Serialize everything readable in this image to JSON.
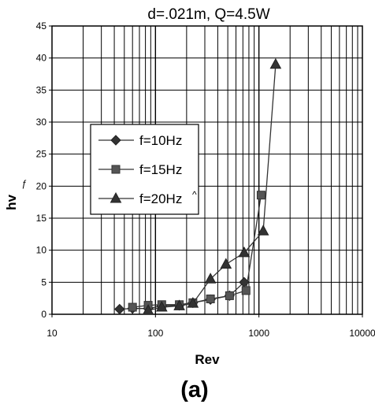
{
  "chart_data": {
    "type": "line",
    "title": "d=.021m, Q=4.5W",
    "xlabel": "Rev",
    "ylabel": "hv",
    "ylabel_mark": "ƒ",
    "panel_label": "(a)",
    "x_scale": "log",
    "xlim": [
      10,
      10000
    ],
    "ylim": [
      0,
      45
    ],
    "x_ticks": [
      10,
      100,
      1000,
      10000
    ],
    "y_ticks": [
      0,
      5,
      10,
      15,
      20,
      25,
      30,
      35,
      40,
      45
    ],
    "grid": true,
    "legend_position": "left-middle",
    "legend_suffix": "^",
    "series": [
      {
        "name": "f=10Hz",
        "marker": "diamond",
        "x": [
          45,
          60,
          85,
          115,
          170,
          230,
          340,
          520,
          720
        ],
        "y": [
          0.8,
          0.9,
          0.9,
          1.3,
          1.4,
          1.8,
          2.3,
          2.9,
          5.0
        ]
      },
      {
        "name": "f=15Hz",
        "marker": "square",
        "x": [
          60,
          85,
          115,
          170,
          230,
          340,
          520,
          750,
          1050
        ],
        "y": [
          1.1,
          1.4,
          1.5,
          1.5,
          1.8,
          2.4,
          2.9,
          3.7,
          18.6
        ]
      },
      {
        "name": "f=20Hz",
        "marker": "triangle",
        "x": [
          85,
          115,
          170,
          230,
          340,
          480,
          720,
          1100,
          1450
        ],
        "y": [
          0.6,
          1.1,
          1.3,
          1.7,
          5.5,
          7.8,
          9.6,
          13.0,
          39.0
        ]
      }
    ]
  }
}
